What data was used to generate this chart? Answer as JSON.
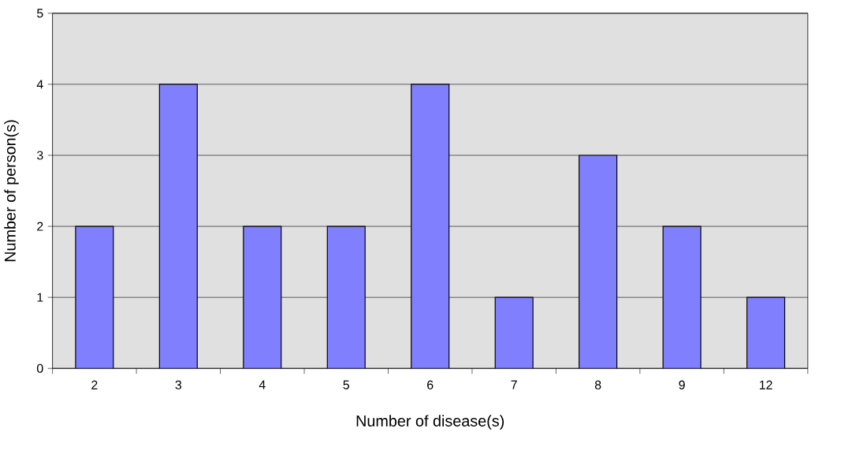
{
  "chart_data": {
    "type": "bar",
    "xlabel": "Number of disease(s)",
    "ylabel": "Number of person(s)",
    "categories": [
      "2",
      "3",
      "4",
      "5",
      "6",
      "7",
      "8",
      "9",
      "12"
    ],
    "values": [
      2,
      4,
      2,
      2,
      4,
      1,
      3,
      2,
      1
    ],
    "color": "#8080ff",
    "ylim": [
      0,
      5
    ],
    "yticks": [
      0,
      1,
      2,
      3,
      4,
      5
    ],
    "grid": "y"
  }
}
